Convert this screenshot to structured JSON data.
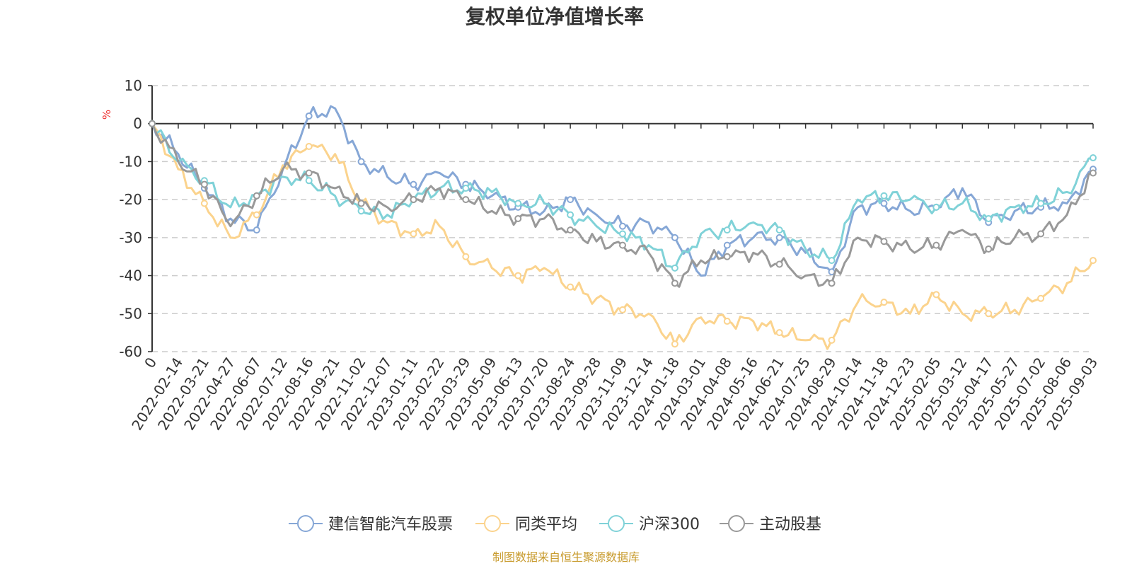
{
  "chart_data": {
    "type": "line",
    "title": "复权单位净值增长率",
    "ylabel": "%",
    "ylim": [
      -60,
      10
    ],
    "yticks": [
      10,
      0,
      -10,
      -20,
      -30,
      -40,
      -50,
      -60
    ],
    "grid": true,
    "legend_position": "bottom",
    "x_ticks": [
      "0",
      "2022-02-14",
      "2022-03-21",
      "2022-04-27",
      "2022-06-07",
      "2022-07-12",
      "2022-08-16",
      "2022-09-21",
      "2022-11-02",
      "2022-12-07",
      "2023-01-11",
      "2023-02-22",
      "2023-03-29",
      "2023-05-09",
      "2023-06-13",
      "2023-07-20",
      "2023-08-24",
      "2023-09-28",
      "2023-11-09",
      "2023-12-14",
      "2024-01-18",
      "2024-03-01",
      "2024-04-08",
      "2024-05-16",
      "2024-06-21",
      "2024-07-25",
      "2024-08-29",
      "2024-10-14",
      "2024-11-18",
      "2024-12-23",
      "2025-02-05",
      "2025-03-12",
      "2025-04-17",
      "2025-05-27",
      "2025-07-02",
      "2025-08-06",
      "2025-09-03"
    ],
    "series": [
      {
        "name": "建信智能汽车股票",
        "color": "#86a7d6",
        "values": [
          0,
          -8,
          -17,
          -25,
          -28,
          -12,
          2,
          4,
          -10,
          -14,
          -16,
          -13,
          -16,
          -19,
          -22,
          -23,
          -20,
          -24,
          -27,
          -26,
          -30,
          -40,
          -32,
          -30,
          -30,
          -34,
          -39,
          -22,
          -21,
          -23,
          -22,
          -17,
          -26,
          -23,
          -22,
          -21,
          -12
        ]
      },
      {
        "name": "同类平均",
        "color": "#fbd38d",
        "values": [
          0,
          -12,
          -21,
          -30,
          -24,
          -11,
          -6,
          -8,
          -21,
          -26,
          -29,
          -27,
          -35,
          -38,
          -40,
          -38,
          -43,
          -46,
          -49,
          -50,
          -58,
          -51,
          -52,
          -52,
          -55,
          -57,
          -57,
          -47,
          -47,
          -50,
          -45,
          -50,
          -50,
          -49,
          -46,
          -42,
          -36
        ]
      },
      {
        "name": "沪深300",
        "color": "#80d2d8",
        "values": [
          0,
          -10,
          -15,
          -22,
          -19,
          -14,
          -15,
          -19,
          -23,
          -24,
          -20,
          -17,
          -17,
          -18,
          -21,
          -21,
          -24,
          -27,
          -29,
          -32,
          -38,
          -29,
          -28,
          -26,
          -28,
          -33,
          -36,
          -20,
          -19,
          -20,
          -22,
          -21,
          -25,
          -22,
          -21,
          -18,
          -9
        ]
      },
      {
        "name": "主动股基",
        "color": "#999999",
        "values": [
          0,
          -10,
          -16,
          -27,
          -19,
          -12,
          -13,
          -17,
          -21,
          -22,
          -20,
          -17,
          -20,
          -23,
          -25,
          -25,
          -28,
          -31,
          -32,
          -34,
          -42,
          -36,
          -35,
          -34,
          -37,
          -40,
          -42,
          -30,
          -31,
          -33,
          -32,
          -28,
          -33,
          -30,
          -29,
          -24,
          -13
        ]
      }
    ]
  },
  "source_text": "制图数据来自恒生聚源数据库"
}
